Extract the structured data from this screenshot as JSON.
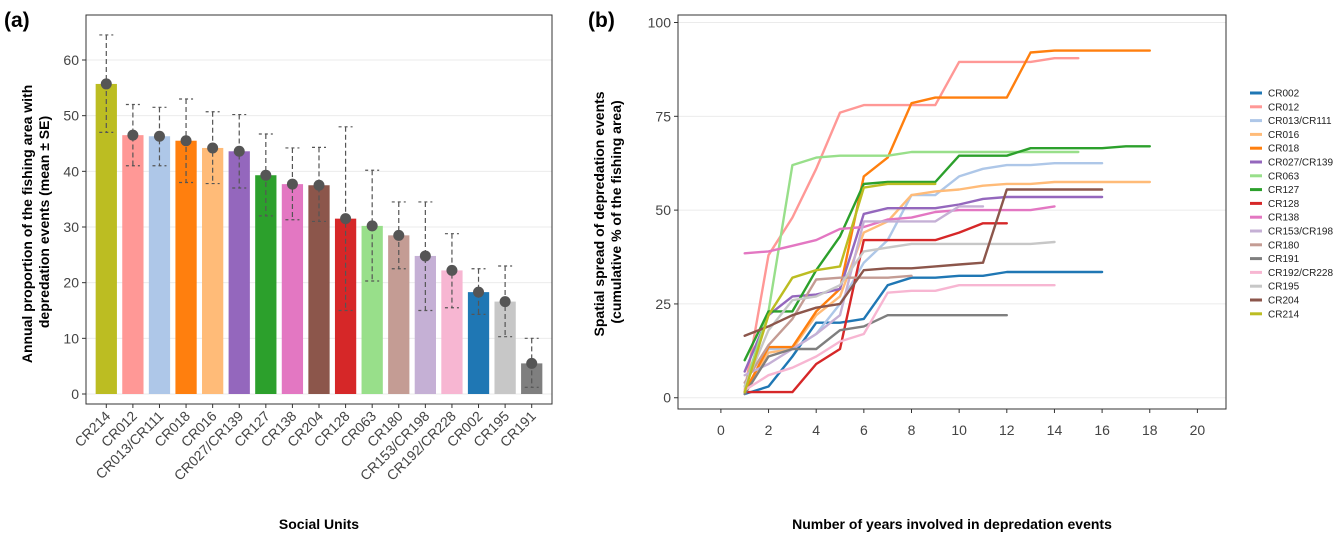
{
  "chart_data": [
    {
      "panel_label": "(a)",
      "type": "bar",
      "xlabel": "Social Units",
      "ylabel_lines": [
        "Annual proportion of the fishing area with",
        "depredation events (mean ± SE)"
      ],
      "ylim": [
        0,
        65
      ],
      "yticks": [
        0,
        10,
        20,
        30,
        40,
        50,
        60
      ],
      "grid": true,
      "categories": [
        "CR214",
        "CR012",
        "CR013/CR111",
        "CR018",
        "CR016",
        "CR027/CR139",
        "CR127",
        "CR138",
        "CR204",
        "CR128",
        "CR063",
        "CR180",
        "CR153/CR198",
        "CR192/CR228",
        "CR002",
        "CR195",
        "CR191"
      ],
      "values": [
        55.7,
        46.5,
        46.3,
        45.5,
        44.2,
        43.6,
        39.3,
        37.7,
        37.5,
        31.5,
        30.2,
        28.5,
        24.8,
        22.2,
        18.3,
        16.6,
        5.5
      ],
      "err_low": [
        47.0,
        41.0,
        41.0,
        38.0,
        37.8,
        37.0,
        32.0,
        31.3,
        31.0,
        15.0,
        20.3,
        22.5,
        15.0,
        15.5,
        14.3,
        10.3,
        1.2
      ],
      "err_high": [
        64.5,
        52.0,
        51.5,
        53.0,
        50.7,
        50.2,
        46.7,
        44.2,
        44.3,
        48.0,
        40.2,
        34.5,
        34.5,
        28.8,
        22.5,
        23.0,
        10.0
      ],
      "colors": [
        "#bcbd22",
        "#ff9896",
        "#aec7e8",
        "#ff7f0e",
        "#ffbb78",
        "#9467bd",
        "#2ca02c",
        "#e377c2",
        "#8c564b",
        "#d62728",
        "#98df8a",
        "#c49c94",
        "#c5b0d5",
        "#f7b6d2",
        "#1f77b4",
        "#c7c7c7",
        "#7f7f7f"
      ]
    },
    {
      "panel_label": "(b)",
      "type": "line",
      "xlabel": "Number of years involved in depredation events",
      "ylabel_lines": [
        "Spatial spread of depredation events",
        "(cumulative % of the fishing area)"
      ],
      "xlim": [
        -1.8,
        21.2
      ],
      "ylim": [
        -3,
        102
      ],
      "xticks": [
        0,
        2,
        4,
        6,
        8,
        10,
        12,
        14,
        16,
        18,
        20
      ],
      "yticks": [
        0,
        25,
        50,
        75,
        100
      ],
      "grid": true,
      "legend_position": "right",
      "series": [
        {
          "name": "CR002",
          "color": "#1f77b4",
          "x": [
            1,
            2,
            3,
            4,
            5,
            6,
            7,
            8,
            9,
            10,
            11,
            12,
            13,
            14,
            15,
            16
          ],
          "y": [
            1,
            3,
            11,
            20,
            20,
            21,
            30,
            32,
            32,
            32.5,
            32.5,
            33.5,
            33.5,
            33.5,
            33.5,
            33.5
          ]
        },
        {
          "name": "CR012",
          "color": "#ff9896",
          "x": [
            1,
            2,
            3,
            4,
            5,
            6,
            7,
            8,
            9,
            10,
            11,
            12,
            13,
            14,
            15
          ],
          "y": [
            2,
            38,
            48,
            61,
            76,
            78,
            78,
            78,
            78,
            89.5,
            89.5,
            89.5,
            89.5,
            90.5,
            90.5
          ]
        },
        {
          "name": "CR013/CR111",
          "color": "#aec7e8",
          "x": [
            1,
            2,
            3,
            4,
            5,
            6,
            7,
            8,
            9,
            10,
            11,
            12,
            13,
            14,
            15,
            16
          ],
          "y": [
            1,
            13,
            13,
            17,
            25,
            36,
            42,
            54,
            54,
            59,
            61,
            62,
            62,
            62.5,
            62.5,
            62.5
          ]
        },
        {
          "name": "CR016",
          "color": "#ffbb78",
          "x": [
            1,
            2,
            3,
            4,
            5,
            6,
            7,
            8,
            9,
            10,
            11,
            12,
            13,
            14,
            15,
            16,
            17,
            18
          ],
          "y": [
            2,
            12,
            13,
            22,
            27,
            44,
            47,
            54,
            55,
            55.5,
            56.5,
            57,
            57,
            57.5,
            57.5,
            57.5,
            57.5,
            57.5
          ]
        },
        {
          "name": "CR018",
          "color": "#ff7f0e",
          "x": [
            1,
            2,
            3,
            4,
            5,
            6,
            7,
            8,
            9,
            10,
            11,
            12,
            13,
            14,
            15,
            16,
            17,
            18
          ],
          "y": [
            1.5,
            13.5,
            13.5,
            23,
            29,
            59,
            64,
            78.5,
            80,
            80,
            80,
            80,
            92,
            92.5,
            92.5,
            92.5,
            92.5,
            92.5
          ]
        },
        {
          "name": "CR027/CR139",
          "color": "#9467bd",
          "x": [
            1,
            2,
            3,
            4,
            5,
            6,
            7,
            8,
            9,
            10,
            11,
            12,
            13,
            14,
            15,
            16
          ],
          "y": [
            7,
            22,
            27,
            27.5,
            29,
            49,
            50.5,
            50.5,
            50.5,
            51.5,
            53,
            53.5,
            53.5,
            53.5,
            53.5,
            53.5
          ]
        },
        {
          "name": "CR063",
          "color": "#98df8a",
          "x": [
            1,
            2,
            3,
            4,
            5,
            6,
            7,
            8,
            9,
            10,
            11,
            12,
            13,
            14,
            15
          ],
          "y": [
            3,
            23,
            62,
            64,
            64.5,
            64.5,
            64.5,
            65.5,
            65.5,
            65.5,
            65.5,
            65.5,
            65.5,
            65.5,
            65.5
          ]
        },
        {
          "name": "CR127",
          "color": "#2ca02c",
          "x": [
            1,
            2,
            3,
            4,
            5,
            6,
            7,
            8,
            9,
            10,
            11,
            12,
            13,
            14,
            15,
            16,
            17,
            18
          ],
          "y": [
            10,
            23,
            23,
            34,
            43,
            57,
            57.5,
            57.5,
            57.5,
            64.5,
            64.5,
            64.5,
            66.5,
            66.5,
            66.5,
            66.5,
            67,
            67
          ]
        },
        {
          "name": "CR128",
          "color": "#d62728",
          "x": [
            1,
            2,
            3,
            4,
            5,
            6,
            7,
            8,
            9,
            10,
            11,
            12
          ],
          "y": [
            1.5,
            1.5,
            1.5,
            9,
            13,
            42,
            42,
            42,
            42,
            44,
            46.5,
            46.5
          ]
        },
        {
          "name": "CR138",
          "color": "#e377c2",
          "x": [
            1,
            2,
            3,
            4,
            5,
            6,
            7,
            8,
            9,
            10,
            11,
            12,
            13,
            14
          ],
          "y": [
            38.5,
            39,
            40.5,
            42,
            45,
            45.5,
            47.5,
            48,
            49.5,
            50,
            50,
            50,
            50,
            51
          ]
        },
        {
          "name": "CR153/CR198",
          "color": "#c5b0d5",
          "x": [
            1,
            2,
            3,
            4,
            5,
            6,
            7,
            8,
            9,
            10,
            11
          ],
          "y": [
            6,
            9,
            13,
            17,
            22,
            47,
            47,
            47,
            47,
            51,
            51
          ]
        },
        {
          "name": "CR180",
          "color": "#c49c94",
          "x": [
            1,
            2,
            3,
            4,
            5,
            6,
            7,
            8
          ],
          "y": [
            4,
            14,
            21,
            31.5,
            32,
            32,
            32,
            32.5
          ]
        },
        {
          "name": "CR191",
          "color": "#7f7f7f",
          "x": [
            1,
            2,
            3,
            4,
            5,
            6,
            7,
            8,
            9,
            10,
            11,
            12
          ],
          "y": [
            1,
            11,
            13,
            13,
            18,
            19,
            22,
            22,
            22,
            22,
            22,
            22
          ]
        },
        {
          "name": "CR192/CR228",
          "color": "#f7b6d2",
          "x": [
            1,
            2,
            3,
            4,
            5,
            6,
            7,
            8,
            9,
            10,
            11,
            12,
            13,
            14
          ],
          "y": [
            2,
            6,
            8,
            11,
            15,
            17,
            28,
            28.5,
            28.5,
            30,
            30,
            30,
            30,
            30
          ]
        },
        {
          "name": "CR195",
          "color": "#c7c7c7",
          "x": [
            1,
            2,
            3,
            4,
            5,
            6,
            7,
            8,
            9,
            10,
            11,
            12,
            13,
            14
          ],
          "y": [
            3,
            18,
            26,
            27,
            30,
            39,
            40,
            41,
            41,
            41,
            41,
            41,
            41,
            41.5
          ]
        },
        {
          "name": "CR204",
          "color": "#8c564b",
          "x": [
            1,
            2,
            3,
            4,
            5,
            6,
            7,
            8,
            9,
            10,
            11,
            12,
            13,
            14,
            15,
            16
          ],
          "y": [
            16.5,
            19,
            22,
            24,
            25,
            34,
            34.5,
            34.5,
            35,
            35.5,
            36,
            55.5,
            55.5,
            55.5,
            55.5,
            55.5
          ]
        },
        {
          "name": "CR214",
          "color": "#bcbd22",
          "x": [
            1,
            2,
            3,
            4,
            5,
            6,
            7,
            8,
            9
          ],
          "y": [
            1.5,
            22,
            32,
            34,
            35,
            56,
            57,
            57,
            57
          ]
        }
      ]
    }
  ]
}
